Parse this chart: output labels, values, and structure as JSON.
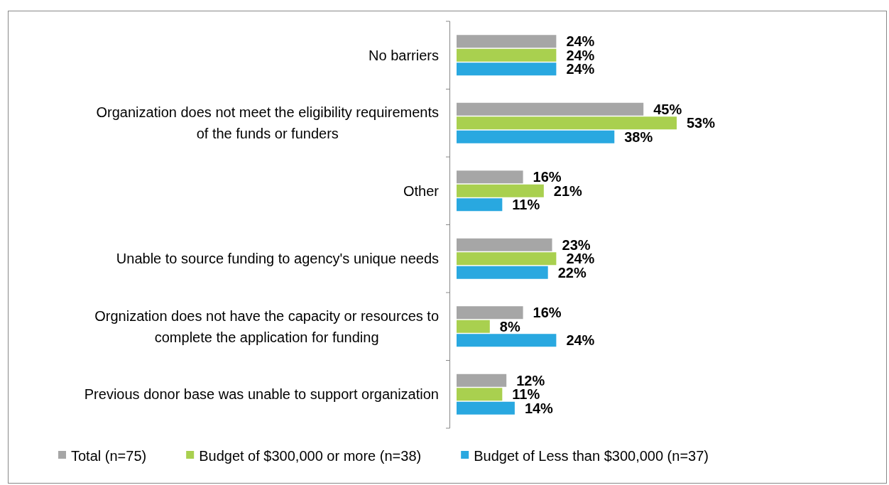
{
  "chart_data": {
    "type": "bar",
    "orientation": "horizontal",
    "categories": [
      "No barriers",
      "Organization does not meet the eligibility requirements of the funds or funders",
      "Other",
      "Unable to source funding to agency's unique needs",
      "Orgnization does not have the capacity or resources to complete the application for funding",
      "Previous donor base was unable to support organization"
    ],
    "series": [
      {
        "name": "Total (n=75)",
        "color": "#a6a6a6",
        "values": [
          24,
          45,
          16,
          23,
          16,
          12
        ],
        "value_labels": [
          "24%",
          "45%",
          "16%",
          "23%",
          "16%",
          "12%"
        ]
      },
      {
        "name": "Budget of $300,000 or more (n=38)",
        "color": "#a9d04f",
        "values": [
          24,
          53,
          21,
          24,
          8,
          11
        ],
        "value_labels": [
          "24%",
          "53%",
          "21%",
          "24%",
          "8%",
          "11%"
        ]
      },
      {
        "name": "Budget of Less than $300,000 (n=37)",
        "color": "#29a8e0",
        "values": [
          24,
          38,
          11,
          22,
          24,
          14
        ],
        "value_labels": [
          "24%",
          "38%",
          "11%",
          "22%",
          "24%",
          "14%"
        ]
      }
    ],
    "tick_labels": "y",
    "legend": "bottom"
  }
}
